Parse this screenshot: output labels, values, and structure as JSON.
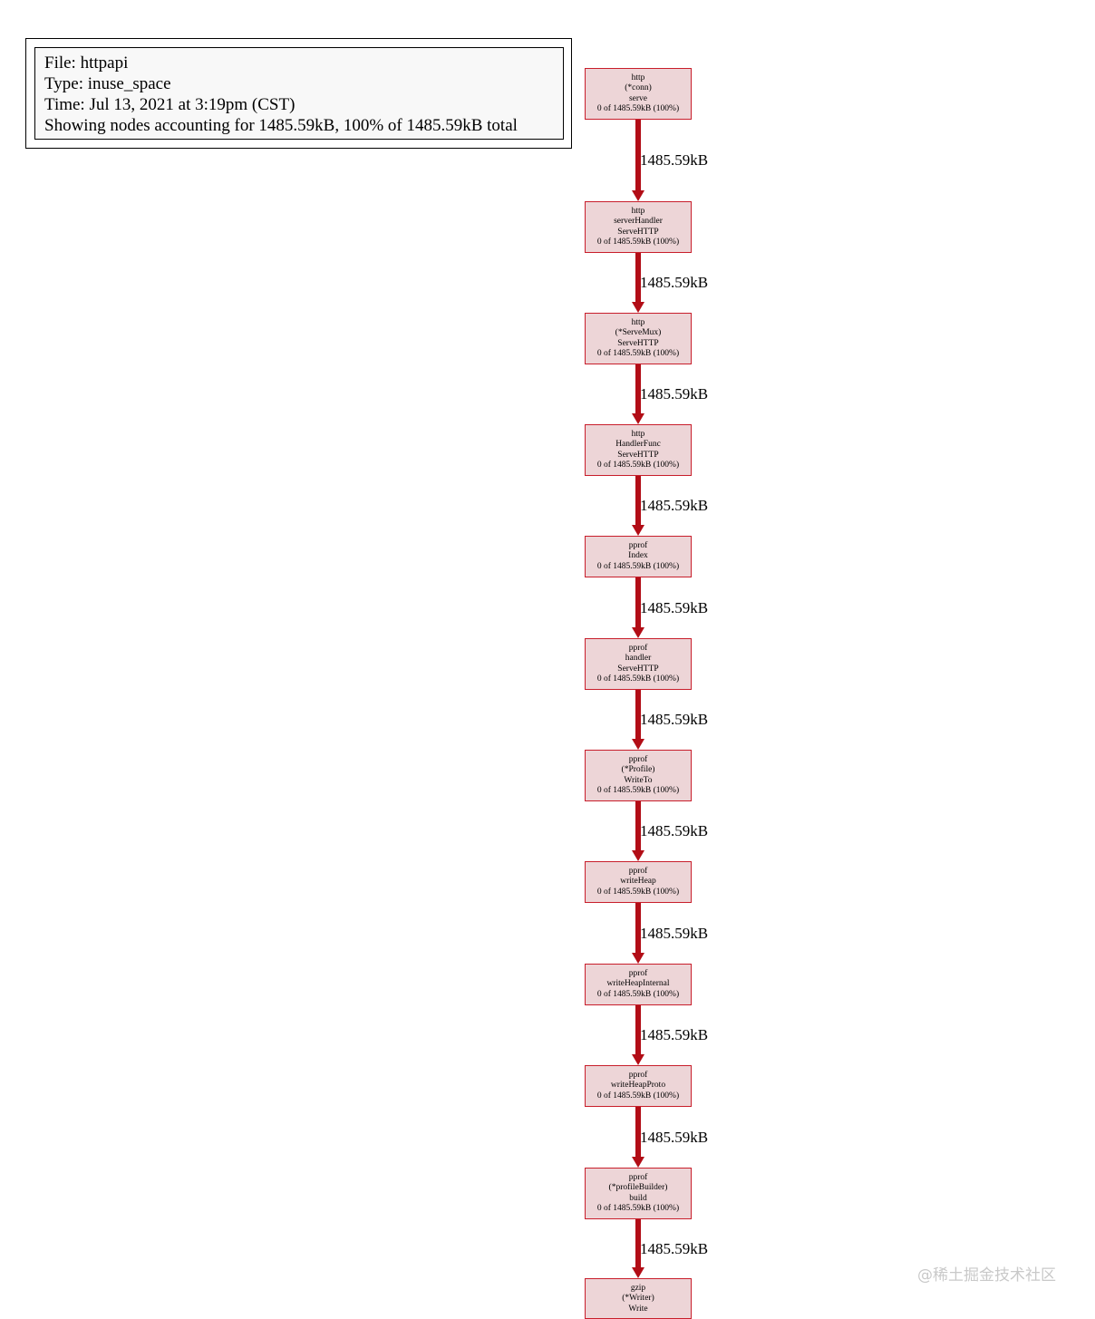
{
  "legend": {
    "file_label": "File:",
    "file": "httpapi",
    "type_label": "Type:",
    "type": "inuse_space",
    "time_label": "Time:",
    "time": "Jul 13, 2021 at 3:19pm (CST)",
    "showing": "Showing nodes accounting for 1485.59kB, 100% of 1485.59kB total"
  },
  "nodes": [
    {
      "lines": [
        "http",
        "(*conn)",
        "serve",
        "0 of 1485.59kB (100%)"
      ]
    },
    {
      "lines": [
        "http",
        "serverHandler",
        "ServeHTTP",
        "0 of 1485.59kB (100%)"
      ]
    },
    {
      "lines": [
        "http",
        "(*ServeMux)",
        "ServeHTTP",
        "0 of 1485.59kB (100%)"
      ]
    },
    {
      "lines": [
        "http",
        "HandlerFunc",
        "ServeHTTP",
        "0 of 1485.59kB (100%)"
      ]
    },
    {
      "lines": [
        "pprof",
        "Index",
        "0 of 1485.59kB (100%)"
      ]
    },
    {
      "lines": [
        "pprof",
        "handler",
        "ServeHTTP",
        "0 of 1485.59kB (100%)"
      ]
    },
    {
      "lines": [
        "pprof",
        "(*Profile)",
        "WriteTo",
        "0 of 1485.59kB (100%)"
      ]
    },
    {
      "lines": [
        "pprof",
        "writeHeap",
        "0 of 1485.59kB (100%)"
      ]
    },
    {
      "lines": [
        "pprof",
        "writeHeapInternal",
        "0 of 1485.59kB (100%)"
      ]
    },
    {
      "lines": [
        "pprof",
        "writeHeapProto",
        "0 of 1485.59kB (100%)"
      ]
    },
    {
      "lines": [
        "pprof",
        "(*profileBuilder)",
        "build",
        "0 of 1485.59kB (100%)"
      ]
    },
    {
      "lines": [
        "gzip",
        "(*Writer)",
        "Write"
      ]
    }
  ],
  "edges": [
    {
      "label": "1485.59kB"
    },
    {
      "label": "1485.59kB"
    },
    {
      "label": "1485.59kB"
    },
    {
      "label": "1485.59kB"
    },
    {
      "label": "1485.59kB"
    },
    {
      "label": "1485.59kB"
    },
    {
      "label": "1485.59kB"
    },
    {
      "label": "1485.59kB"
    },
    {
      "label": "1485.59kB"
    },
    {
      "label": "1485.59kB"
    },
    {
      "label": "1485.59kB"
    }
  ],
  "colors": {
    "node_border": "#c81e2b",
    "node_fill": "#edd5d7",
    "edge": "#b20d16"
  },
  "watermark": "@稀土掘金技术社区"
}
